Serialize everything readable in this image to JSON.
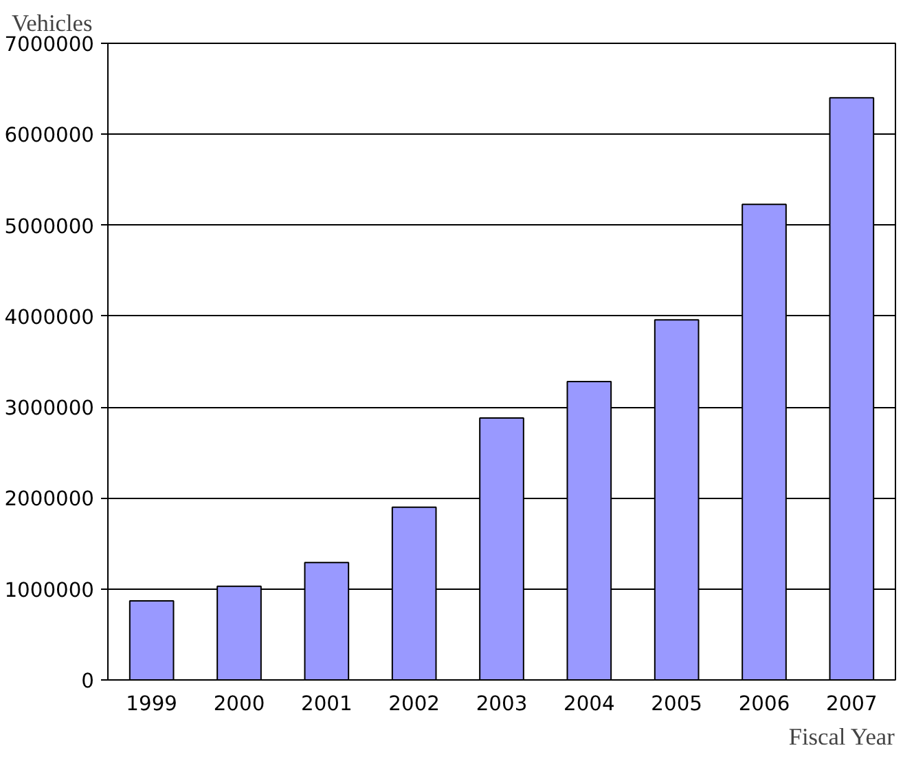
{
  "chart_data": {
    "type": "bar",
    "ylabel": "Vehicles",
    "xlabel": "Fiscal Year",
    "categories": [
      "1999",
      "2000",
      "2001",
      "2002",
      "2003",
      "2004",
      "2005",
      "2006",
      "2007"
    ],
    "values": [
      870000,
      1030000,
      1290000,
      1900000,
      2880000,
      3280000,
      3960000,
      5230000,
      6400000
    ],
    "color": "#9999ff",
    "ylim": [
      0,
      7000000
    ],
    "yticks": [
      0,
      1000000,
      2000000,
      3000000,
      4000000,
      5000000,
      6000000,
      7000000
    ],
    "grid": "y"
  }
}
